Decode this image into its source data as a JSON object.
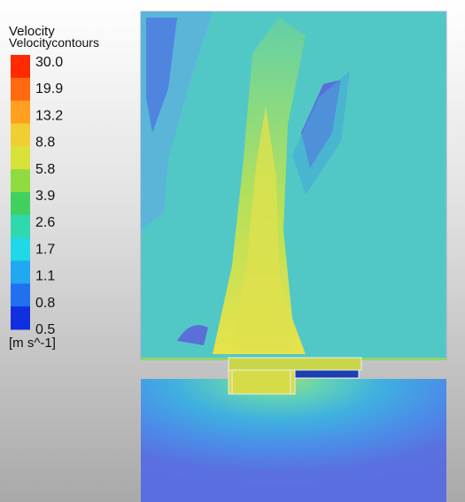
{
  "legend": {
    "title": "Velocity",
    "subtitle": "Velocitycontours",
    "labels": [
      "30.0",
      "19.9",
      "13.2",
      "8.8",
      "5.8",
      "3.9",
      "2.6",
      "1.7",
      "1.1",
      "0.8",
      "0.5"
    ],
    "units": "[m s^-1]"
  }
}
